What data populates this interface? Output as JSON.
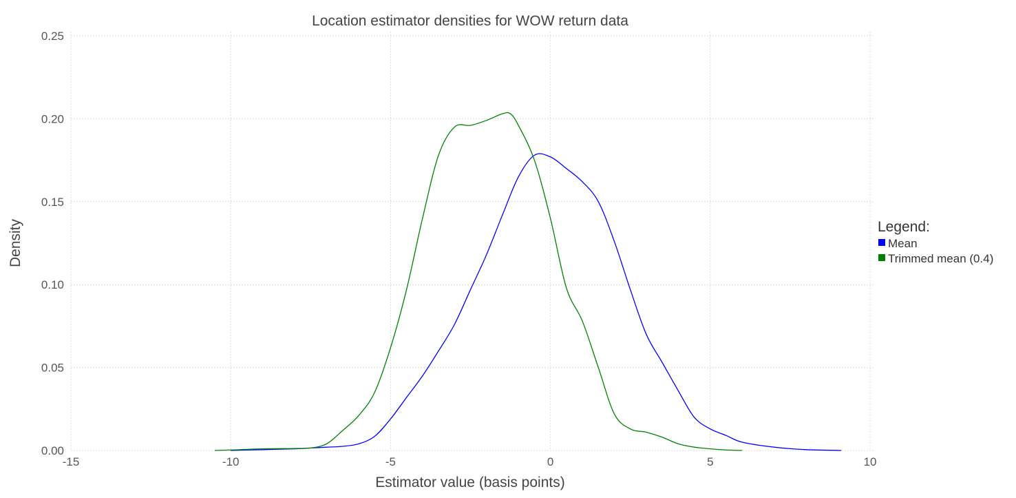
{
  "chart_data": {
    "type": "line",
    "title": "Location estimator densities for WOW return data",
    "xlabel": "Estimator value (basis points)",
    "ylabel": "Density",
    "xlim": [
      -15,
      10
    ],
    "ylim": [
      0,
      0.25
    ],
    "x_ticks": [
      -15,
      -10,
      -5,
      0,
      5,
      10
    ],
    "x_tick_labels": [
      "-15",
      "-10",
      "-5",
      "0",
      "5",
      "10"
    ],
    "y_ticks": [
      0,
      0.05,
      0.1,
      0.15,
      0.2,
      0.25
    ],
    "y_tick_labels": [
      "0.00",
      "0.05",
      "0.10",
      "0.15",
      "0.20",
      "0.25"
    ],
    "grid": true,
    "legend": {
      "title": "Legend:",
      "placement": "right"
    },
    "series": [
      {
        "name": "Mean",
        "color": "#0000ff",
        "x": [
          -10,
          -9,
          -8,
          -7.5,
          -7,
          -6.5,
          -6,
          -5.5,
          -5,
          -4.5,
          -4,
          -3.5,
          -3,
          -2.5,
          -2,
          -1.5,
          -1,
          -0.5,
          0,
          0.5,
          1,
          1.5,
          2,
          2.5,
          3,
          3.5,
          4,
          4.5,
          5,
          5.5,
          6,
          7,
          8,
          9.1
        ],
        "y": [
          0.0,
          0.0005,
          0.001,
          0.0015,
          0.002,
          0.0025,
          0.004,
          0.0085,
          0.019,
          0.032,
          0.045,
          0.06,
          0.076,
          0.097,
          0.118,
          0.142,
          0.165,
          0.178,
          0.177,
          0.17,
          0.162,
          0.15,
          0.126,
          0.097,
          0.07,
          0.053,
          0.036,
          0.02,
          0.013,
          0.009,
          0.005,
          0.002,
          0.0005,
          0.0
        ]
      },
      {
        "name": "Trimmed mean (0.4)",
        "color": "#008000",
        "x": [
          -10.5,
          -10,
          -9,
          -8,
          -7.5,
          -7,
          -6.5,
          -6,
          -5.5,
          -5,
          -4.5,
          -4,
          -3.5,
          -3,
          -2.5,
          -2,
          -1.5,
          -1.25,
          -1,
          -0.5,
          0,
          0.5,
          1,
          1.5,
          2,
          2.5,
          3,
          3.5,
          4,
          4.5,
          5,
          5.5,
          6
        ],
        "y": [
          0.0,
          0.0003,
          0.001,
          0.0012,
          0.0015,
          0.004,
          0.012,
          0.021,
          0.035,
          0.062,
          0.097,
          0.14,
          0.178,
          0.195,
          0.196,
          0.199,
          0.203,
          0.203,
          0.196,
          0.175,
          0.14,
          0.098,
          0.078,
          0.05,
          0.022,
          0.013,
          0.011,
          0.008,
          0.004,
          0.002,
          0.001,
          0.0003,
          0.0
        ]
      }
    ]
  }
}
